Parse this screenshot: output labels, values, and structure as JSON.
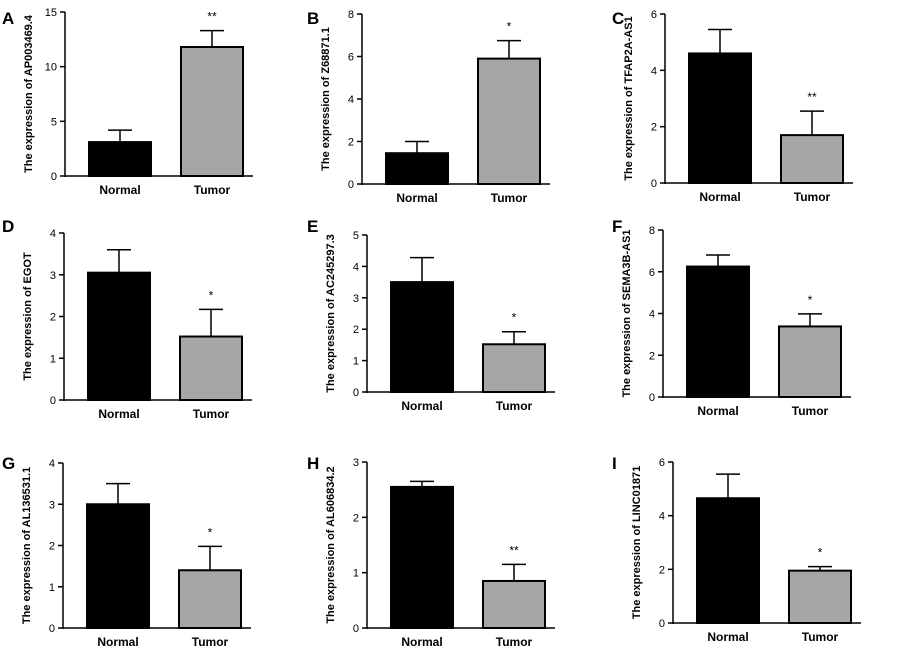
{
  "chart_data": [
    {
      "panel": "A",
      "type": "bar",
      "ylabel": "The expression of AP003469.4",
      "categories": [
        "Normal",
        "Tumor"
      ],
      "values": [
        3.1,
        11.8
      ],
      "errors": [
        1.1,
        1.5
      ],
      "colors": [
        "#000000",
        "#a6a6a6"
      ],
      "significance": "**",
      "ylim": [
        0,
        15
      ],
      "yticks": [
        0,
        5,
        10,
        15
      ]
    },
    {
      "panel": "B",
      "type": "bar",
      "ylabel": "The expression of Z68871.1",
      "categories": [
        "Normal",
        "Tumor"
      ],
      "values": [
        1.45,
        5.9
      ],
      "errors": [
        0.55,
        0.85
      ],
      "colors": [
        "#000000",
        "#a6a6a6"
      ],
      "significance": "*",
      "ylim": [
        0,
        8
      ],
      "yticks": [
        0,
        2,
        4,
        6,
        8
      ]
    },
    {
      "panel": "C",
      "type": "bar",
      "ylabel": "The expression of TFAP2A-AS1",
      "categories": [
        "Normal",
        "Tumor"
      ],
      "values": [
        4.6,
        1.7
      ],
      "errors": [
        0.85,
        0.85
      ],
      "colors": [
        "#000000",
        "#a6a6a6"
      ],
      "significance": "**",
      "ylim": [
        0,
        6
      ],
      "yticks": [
        0,
        2,
        4,
        6
      ]
    },
    {
      "panel": "D",
      "type": "bar",
      "ylabel": "The expression of EGOT",
      "categories": [
        "Normal",
        "Tumor"
      ],
      "values": [
        3.05,
        1.52
      ],
      "errors": [
        0.55,
        0.65
      ],
      "colors": [
        "#000000",
        "#a6a6a6"
      ],
      "significance": "*",
      "ylim": [
        0,
        4
      ],
      "yticks": [
        0,
        1,
        2,
        3,
        4
      ]
    },
    {
      "panel": "E",
      "type": "bar",
      "ylabel": "The expression of AC245297.3",
      "categories": [
        "Normal",
        "Tumor"
      ],
      "values": [
        3.5,
        1.52
      ],
      "errors": [
        0.78,
        0.4
      ],
      "colors": [
        "#000000",
        "#a6a6a6"
      ],
      "significance": "*",
      "ylim": [
        0,
        5
      ],
      "yticks": [
        0,
        1,
        2,
        3,
        4,
        5
      ]
    },
    {
      "panel": "F",
      "type": "bar",
      "ylabel": "The expression of SEMA3B-AS1",
      "categories": [
        "Normal",
        "Tumor"
      ],
      "values": [
        6.25,
        3.38
      ],
      "errors": [
        0.55,
        0.6
      ],
      "colors": [
        "#000000",
        "#a6a6a6"
      ],
      "significance": "*",
      "ylim": [
        0,
        8
      ],
      "yticks": [
        0,
        2,
        4,
        6,
        8
      ]
    },
    {
      "panel": "G",
      "type": "bar",
      "ylabel": "The expression of AL136531.1",
      "categories": [
        "Normal",
        "Tumor"
      ],
      "values": [
        3.0,
        1.4
      ],
      "errors": [
        0.5,
        0.58
      ],
      "colors": [
        "#000000",
        "#a6a6a6"
      ],
      "significance": "*",
      "ylim": [
        0,
        4
      ],
      "yticks": [
        0,
        1,
        2,
        3,
        4
      ]
    },
    {
      "panel": "H",
      "type": "bar",
      "ylabel": "The expression of AL606834.2",
      "categories": [
        "Normal",
        "Tumor"
      ],
      "values": [
        2.55,
        0.85
      ],
      "errors": [
        0.1,
        0.3
      ],
      "colors": [
        "#000000",
        "#a6a6a6"
      ],
      "significance": "**",
      "ylim": [
        0,
        3
      ],
      "yticks": [
        0,
        1,
        2,
        3
      ]
    },
    {
      "panel": "I",
      "type": "bar",
      "ylabel": "The expression of LINC01871",
      "categories": [
        "Normal",
        "Tumor"
      ],
      "values": [
        4.65,
        1.95
      ],
      "errors": [
        0.9,
        0.15
      ],
      "colors": [
        "#000000",
        "#a6a6a6"
      ],
      "significance": "*",
      "ylim": [
        0,
        6
      ],
      "yticks": [
        0,
        2,
        4,
        6
      ]
    }
  ]
}
